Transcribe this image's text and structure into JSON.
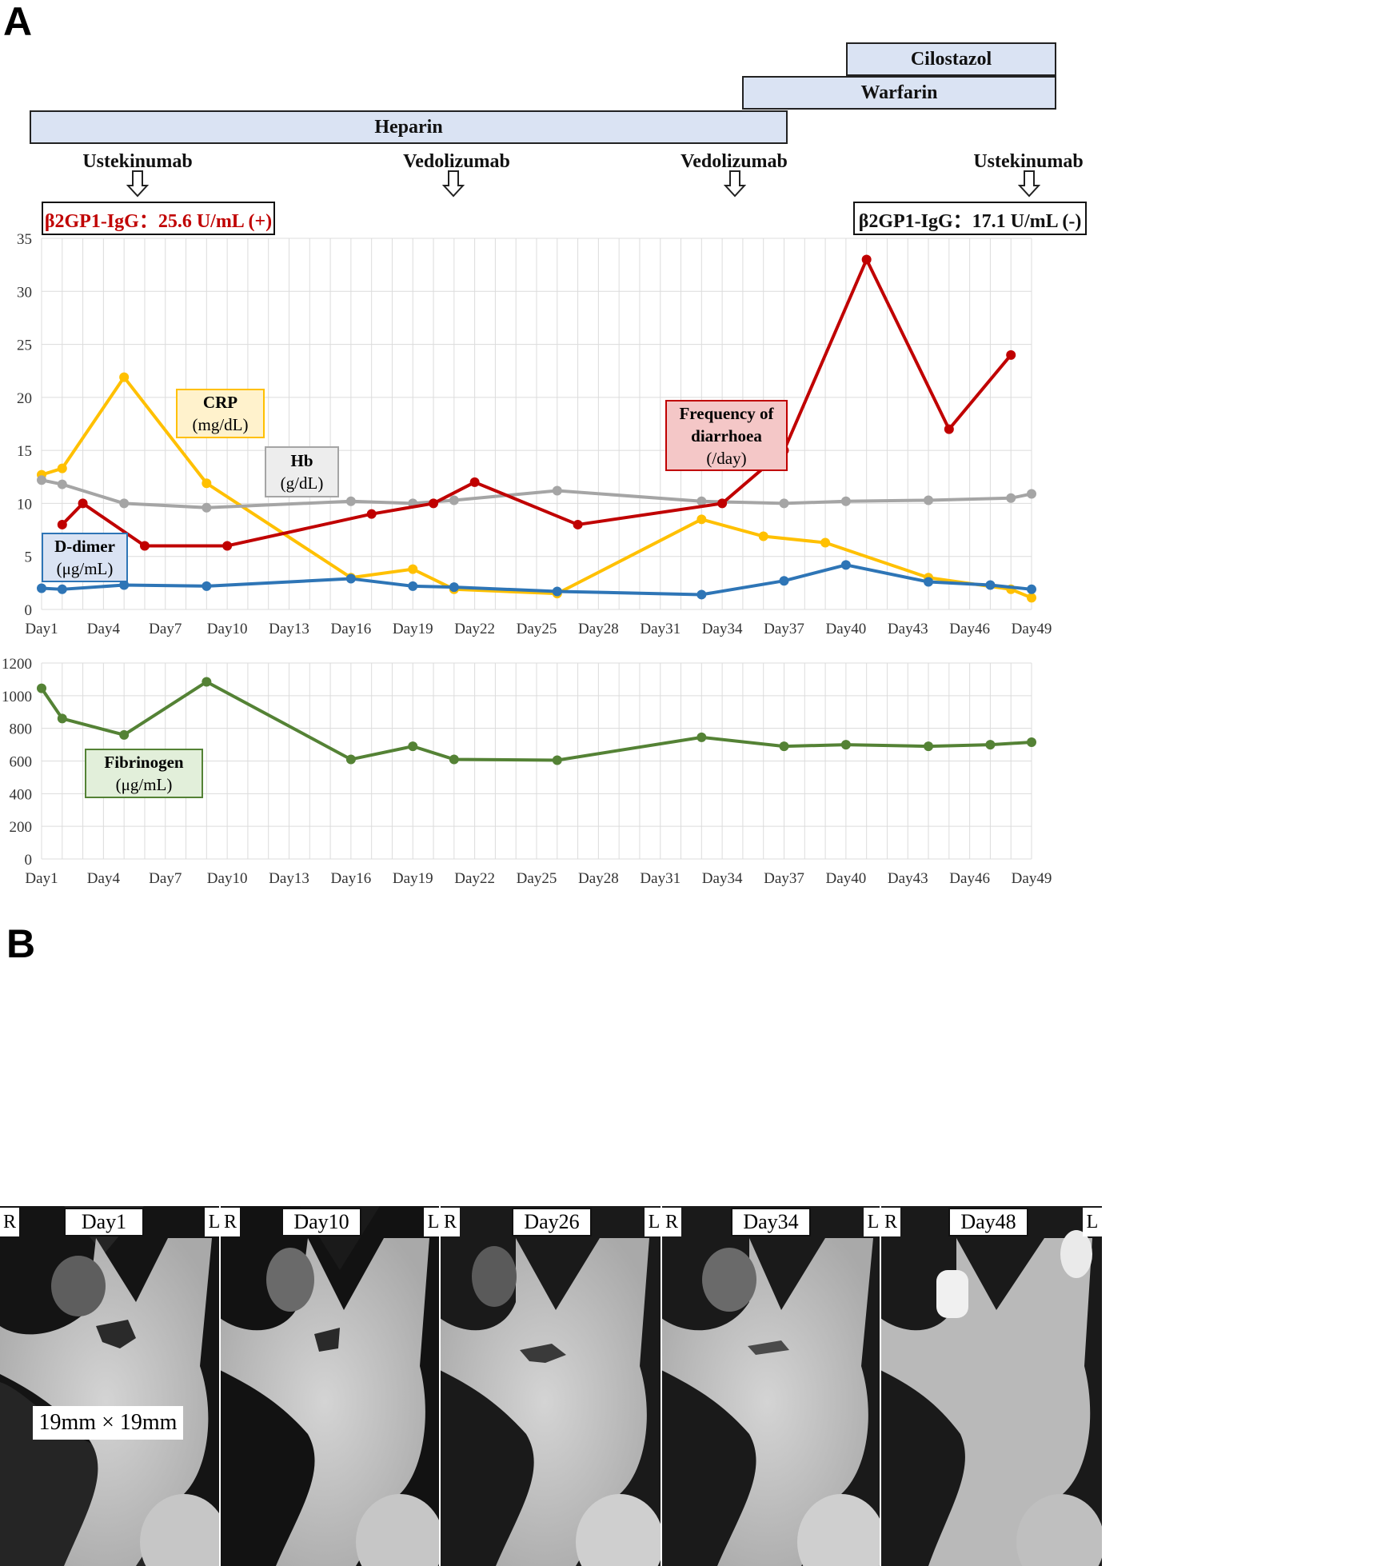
{
  "panel_a_label": "A",
  "panel_b_label": "B",
  "treatment_bars": {
    "cilostazol": "Cilostazol",
    "warfarin": "Warfarin",
    "heparin": "Heparin"
  },
  "administrations": [
    {
      "drug": "Ustekinumab",
      "day": 4.5
    },
    {
      "drug": "Vedolizumab",
      "day": 20.5
    },
    {
      "drug": "Vedolizumab",
      "day": 34.25
    },
    {
      "drug": "Ustekinumab",
      "day": 48
    }
  ],
  "antibody": {
    "first": "β2GP1-IgG：25.6 U/mL (+)",
    "last": "β2GP1-IgG：17.1 U/mL (-)",
    "first_color": "#c00000",
    "last_color": "#111111"
  },
  "legends": {
    "crp": {
      "title": "CRP",
      "unit": "(mg/dL)"
    },
    "hb": {
      "title": "Hb",
      "unit": "(g/dL)"
    },
    "diarrhoea": {
      "title1": "Frequency of",
      "title2": "diarrhoea",
      "unit": "(/day)"
    },
    "ddimer": {
      "title": "D-dimer",
      "unit": "(μg/mL)"
    },
    "fibrinogen": {
      "title": "Fibrinogen",
      "unit": "(μg/mL)"
    }
  },
  "chart_data": [
    {
      "type": "line",
      "title": "",
      "xlabel": "",
      "ylabel": "",
      "xlim": [
        1,
        49
      ],
      "ylim": [
        0,
        35
      ],
      "yticks": [
        0,
        5,
        10,
        15,
        20,
        25,
        30,
        35
      ],
      "xtick_labels": [
        "Day1",
        "Day4",
        "Day7",
        "Day10",
        "Day13",
        "Day16",
        "Day19",
        "Day22",
        "Day25",
        "Day28",
        "Day31",
        "Day34",
        "Day37",
        "Day40",
        "Day43",
        "Day46",
        "Day49"
      ],
      "xtick_values": [
        1,
        4,
        7,
        10,
        13,
        16,
        19,
        22,
        25,
        28,
        31,
        34,
        37,
        40,
        43,
        46,
        49
      ],
      "grid": true,
      "series": [
        {
          "name": "CRP (mg/dL)",
          "color": "#ffc000",
          "x": [
            1,
            2,
            5,
            9,
            16,
            19,
            21,
            26,
            33,
            36,
            39,
            44,
            48,
            49
          ],
          "y": [
            12.7,
            13.3,
            21.9,
            11.9,
            3.0,
            3.8,
            1.9,
            1.5,
            8.5,
            6.9,
            6.3,
            3.0,
            1.9,
            1.1
          ]
        },
        {
          "name": "Hb (g/dL)",
          "color": "#a5a5a5",
          "x": [
            1,
            2,
            5,
            9,
            16,
            19,
            21,
            26,
            33,
            37,
            40,
            44,
            48,
            49
          ],
          "y": [
            12.2,
            11.8,
            10.0,
            9.6,
            10.2,
            10.0,
            10.3,
            11.2,
            10.2,
            10.0,
            10.2,
            10.3,
            10.5,
            10.9
          ]
        },
        {
          "name": "Frequency of diarrhoea (/day)",
          "color": "#c00000",
          "x": [
            2,
            3,
            6,
            10,
            17,
            20,
            22,
            27,
            34,
            37,
            41,
            45,
            48
          ],
          "y": [
            8,
            10,
            6,
            6,
            9,
            10,
            12,
            8,
            10,
            15,
            33,
            17,
            24
          ]
        },
        {
          "name": "D-dimer (μg/mL)",
          "color": "#2e75b6",
          "x": [
            1,
            2,
            5,
            9,
            16,
            19,
            21,
            26,
            33,
            37,
            40,
            44,
            47,
            49
          ],
          "y": [
            2.0,
            1.9,
            2.3,
            2.2,
            2.9,
            2.2,
            2.1,
            1.7,
            1.4,
            2.7,
            4.2,
            2.6,
            2.3,
            1.9
          ]
        }
      ]
    },
    {
      "type": "line",
      "title": "",
      "xlabel": "",
      "ylabel": "",
      "xlim": [
        1,
        49
      ],
      "ylim": [
        0,
        1200
      ],
      "yticks": [
        0,
        200,
        400,
        600,
        800,
        1000,
        1200
      ],
      "xtick_labels": [
        "Day1",
        "Day4",
        "Day7",
        "Day10",
        "Day13",
        "Day16",
        "Day19",
        "Day22",
        "Day25",
        "Day28",
        "Day31",
        "Day34",
        "Day37",
        "Day40",
        "Day43",
        "Day46",
        "Day49"
      ],
      "xtick_values": [
        1,
        4,
        7,
        10,
        13,
        16,
        19,
        22,
        25,
        28,
        31,
        34,
        37,
        40,
        43,
        46,
        49
      ],
      "grid": true,
      "series": [
        {
          "name": "Fibrinogen (μg/mL)",
          "color": "#548235",
          "x": [
            1,
            2,
            5,
            9,
            16,
            19,
            21,
            26,
            33,
            37,
            40,
            44,
            47,
            49
          ],
          "y": [
            1045,
            860,
            760,
            1085,
            610,
            690,
            610,
            605,
            745,
            690,
            700,
            690,
            700,
            715
          ]
        }
      ]
    }
  ],
  "ct_scans": [
    {
      "label": "Day1",
      "left_side": "R",
      "right_side": "L"
    },
    {
      "label": "Day10",
      "left_side": "R",
      "right_side": "L"
    },
    {
      "label": "Day26",
      "left_side": "R",
      "right_side": "L"
    },
    {
      "label": "Day34",
      "left_side": "R",
      "right_side": "L"
    },
    {
      "label": "Day48",
      "left_side": "R",
      "right_side": "L"
    }
  ],
  "thrombus_size": "19mm × 19mm"
}
